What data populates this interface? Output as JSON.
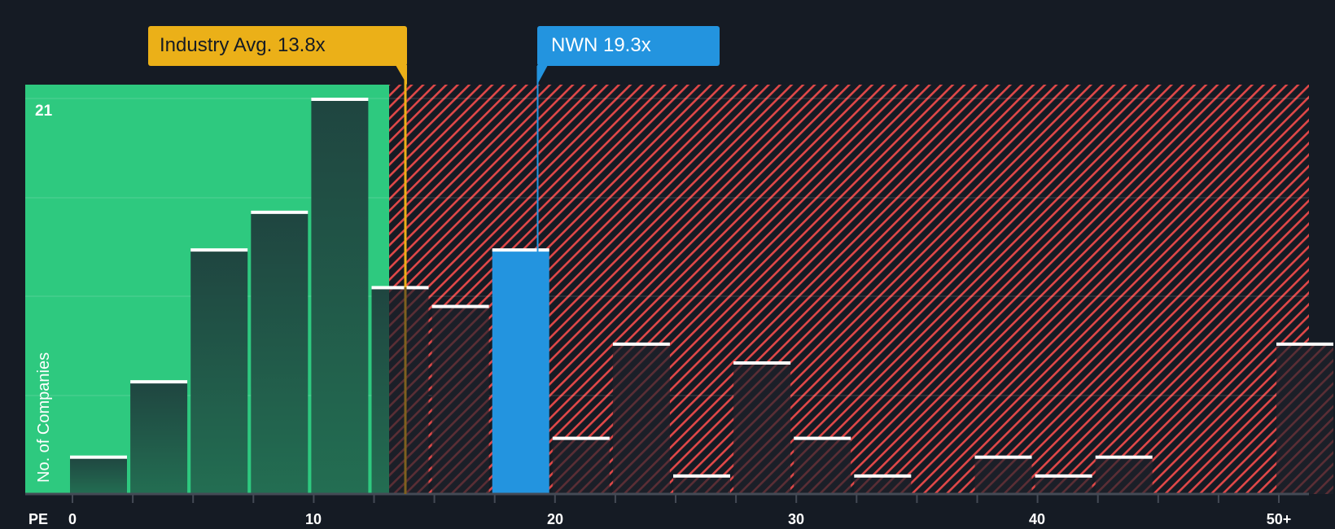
{
  "chart_data": {
    "type": "bar",
    "title": "",
    "xlabel": "PE",
    "ylabel": "No. of Companies",
    "x_tick_labels": [
      "0",
      "10",
      "20",
      "30",
      "40",
      "50+"
    ],
    "y_tick_labels": [
      "21"
    ],
    "ylim": [
      0,
      21
    ],
    "grid": true,
    "bin_width": 2.5,
    "categories": [
      "0-2.5",
      "2.5-5",
      "5-7.5",
      "7.5-10",
      "10-12.5",
      "12.5-15",
      "15-17.5",
      "17.5-20",
      "20-22.5",
      "22.5-25",
      "25-27.5",
      "27.5-30",
      "30-32.5",
      "32.5-35",
      "35-37.5",
      "37.5-40",
      "40-42.5",
      "42.5-45",
      "45-47.5",
      "47.5-50",
      "50+"
    ],
    "values": [
      2,
      6,
      13,
      15,
      21,
      11,
      10,
      13,
      3,
      8,
      1,
      7,
      3,
      1,
      0,
      2,
      1,
      2,
      0,
      0,
      8
    ],
    "highlight_bin_index": 7,
    "annotations": [
      {
        "label": "Industry Avg. 13.8x",
        "value": 13.8,
        "color": "#ebb018"
      },
      {
        "label": "NWN 19.3x",
        "value": 19.3,
        "color": "#2394df"
      }
    ],
    "regions": [
      {
        "name": "undervalued",
        "from": 0,
        "to": 13.8,
        "color": "#2ec97f"
      },
      {
        "name": "overvalued",
        "from": 13.8,
        "to": "50+",
        "color": "#e04848",
        "pattern": "diagonal-hatch"
      }
    ]
  },
  "callouts": {
    "industry": "Industry Avg. 13.8x",
    "company": "NWN 19.3x"
  },
  "axis": {
    "y_title": "No. of Companies",
    "y_max_label": "21",
    "x_title": "PE",
    "x_ticks": [
      "0",
      "10",
      "20",
      "30",
      "40",
      "50+"
    ]
  },
  "colors": {
    "background": "#151b24",
    "green": "#2ec97f",
    "red_hatch": "#e04848",
    "industry": "#ebb018",
    "company": "#2394df",
    "bar_dark_green": "#1f4a3e",
    "bar_dark": "#1c2029"
  }
}
